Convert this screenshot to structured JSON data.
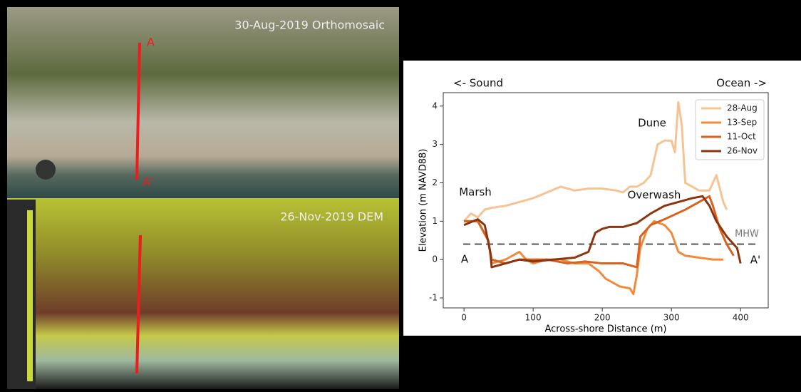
{
  "images": {
    "top_label": "30-Aug-2019 Orthomosaic",
    "bottom_label": "26-Nov-2019 DEM",
    "marker_start": "A",
    "marker_end": "A'"
  },
  "chart_data": {
    "type": "line",
    "xlabel": "Across-shore Distance (m)",
    "ylabel": "Elevation (m NAVD88)",
    "xlim": [
      -30,
      440
    ],
    "ylim": [
      -1.26,
      4.35
    ],
    "xticks": [
      0,
      100,
      200,
      300,
      400
    ],
    "yticks": [
      -1,
      0,
      1,
      2,
      3,
      4
    ],
    "legend": "upper right",
    "reference_line": {
      "label": "MHW",
      "value": 0.4,
      "color": "#777777"
    },
    "annotations": {
      "left_direction": "<- Sound",
      "right_direction": "Ocean ->",
      "dune": "Dune",
      "marsh": "Marsh",
      "overwash": "Overwash",
      "start": "A",
      "end": "A'"
    },
    "series": [
      {
        "name": "28-Aug",
        "color": "#f6c393",
        "x": [
          0,
          10,
          20,
          30,
          40,
          60,
          80,
          100,
          120,
          140,
          160,
          180,
          200,
          220,
          230,
          240,
          250,
          260,
          270,
          280,
          290,
          300,
          305,
          310,
          315,
          320,
          340,
          355,
          365,
          375,
          380
        ],
        "values": [
          1.0,
          1.2,
          1.1,
          1.3,
          1.35,
          1.4,
          1.5,
          1.6,
          1.75,
          1.9,
          1.8,
          1.85,
          1.85,
          1.8,
          1.75,
          1.9,
          1.9,
          2.0,
          2.2,
          3.0,
          3.1,
          3.1,
          2.8,
          4.1,
          3.5,
          2.0,
          1.8,
          1.8,
          2.2,
          1.5,
          1.3
        ]
      },
      {
        "name": "13-Sep",
        "color": "#f08a3c",
        "x": [
          0,
          20,
          35,
          40,
          60,
          80,
          90,
          100,
          120,
          140,
          160,
          180,
          195,
          205,
          215,
          225,
          240,
          245,
          250,
          255,
          265,
          275,
          290,
          300,
          310,
          320,
          340,
          360,
          375
        ],
        "values": [
          1.0,
          1.0,
          0.5,
          -0.1,
          0.0,
          0.2,
          0.0,
          -0.1,
          0.0,
          0.0,
          -0.1,
          -0.1,
          -0.3,
          -0.5,
          -0.6,
          -0.7,
          -0.75,
          -0.9,
          -0.4,
          0.3,
          0.8,
          1.0,
          0.9,
          0.7,
          0.2,
          0.1,
          0.05,
          0.0,
          0.0
        ]
      },
      {
        "name": "11-Oct",
        "color": "#d9621e",
        "x": [
          0,
          20,
          35,
          40,
          60,
          80,
          120,
          150,
          175,
          200,
          230,
          250,
          255,
          270,
          290,
          320,
          340,
          355,
          360,
          370,
          380,
          390
        ],
        "values": [
          1.0,
          1.0,
          0.5,
          0.0,
          -0.1,
          0.0,
          0.0,
          -0.1,
          -0.05,
          -0.1,
          -0.1,
          -0.2,
          0.6,
          0.9,
          1.05,
          1.3,
          1.5,
          1.65,
          1.4,
          0.8,
          0.4,
          0.1
        ]
      },
      {
        "name": "26-Nov",
        "color": "#8b3510",
        "x": [
          0,
          20,
          30,
          38,
          40,
          60,
          80,
          100,
          130,
          160,
          180,
          190,
          200,
          210,
          230,
          250,
          270,
          290,
          310,
          330,
          345,
          355,
          365,
          380,
          395,
          400
        ],
        "values": [
          0.9,
          1.05,
          0.9,
          0.2,
          -0.2,
          -0.1,
          0.0,
          -0.05,
          0.0,
          0.05,
          0.2,
          0.7,
          0.8,
          0.85,
          0.85,
          0.95,
          1.2,
          1.4,
          1.5,
          1.6,
          1.65,
          1.4,
          1.0,
          0.6,
          0.3,
          -0.1
        ]
      }
    ]
  }
}
